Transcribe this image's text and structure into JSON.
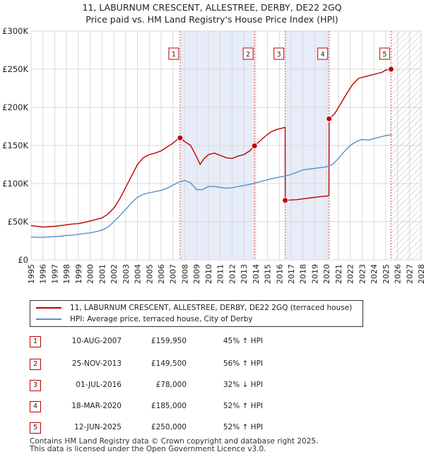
{
  "chart_data": {
    "type": "line",
    "title": "11, LABURNUM CRESCENT, ALLESTREE, DERBY, DE22 2GQ",
    "subtitle": "Price paid vs. HM Land Registry's House Price Index (HPI)",
    "xlim": [
      1995,
      2028
    ],
    "ylim": [
      0,
      300000
    ],
    "x_ticks": [
      "1995",
      "1996",
      "1997",
      "1998",
      "1999",
      "2000",
      "2001",
      "2002",
      "2003",
      "2004",
      "2005",
      "2006",
      "2007",
      "2008",
      "2009",
      "2010",
      "2011",
      "2012",
      "2013",
      "2014",
      "2015",
      "2016",
      "2017",
      "2018",
      "2019",
      "2020",
      "2021",
      "2022",
      "2023",
      "2024",
      "2025",
      "2026",
      "2027",
      "2028"
    ],
    "y_ticks": [
      {
        "value": 0,
        "label": "£0"
      },
      {
        "value": 50000,
        "label": "£50K"
      },
      {
        "value": 100000,
        "label": "£100K"
      },
      {
        "value": 150000,
        "label": "£150K"
      },
      {
        "value": 200000,
        "label": "£200K"
      },
      {
        "value": 250000,
        "label": "£250K"
      },
      {
        "value": 300000,
        "label": "£300K"
      }
    ],
    "grid": true,
    "shaded_periods": [
      [
        2007.61,
        2013.9
      ],
      [
        2016.5,
        2020.21
      ]
    ],
    "hatched_from": 2025.45,
    "series": [
      {
        "name": "11, LABURNUM CRESCENT, ALLESTREE, DERBY, DE22 2GQ (terraced house)",
        "color": "#c00000",
        "x": [
          1995.0,
          1995.5,
          1996.0,
          1996.5,
          1997.0,
          1997.5,
          1998.0,
          1998.5,
          1999.0,
          1999.5,
          2000.0,
          2000.5,
          2001.0,
          2001.5,
          2002.0,
          2002.5,
          2003.0,
          2003.5,
          2004.0,
          2004.5,
          2005.0,
          2005.5,
          2006.0,
          2006.5,
          2007.0,
          2007.3,
          2007.61,
          2008.0,
          2008.5,
          2009.0,
          2009.3,
          2009.6,
          2010.0,
          2010.5,
          2011.0,
          2011.5,
          2012.0,
          2012.5,
          2013.0,
          2013.5,
          2013.9,
          2014.3,
          2014.8,
          2015.3,
          2015.8,
          2016.3,
          2016.49,
          2016.5,
          2017.0,
          2017.5,
          2018.0,
          2018.5,
          2019.0,
          2019.5,
          2020.2,
          2020.21,
          2020.7,
          2021.2,
          2021.7,
          2022.2,
          2022.7,
          2023.2,
          2023.7,
          2024.2,
          2024.7,
          2025.0,
          2025.45
        ],
        "y": [
          45000,
          44000,
          43000,
          43500,
          44000,
          45000,
          46000,
          47000,
          47500,
          49000,
          51000,
          53000,
          55000,
          60000,
          68000,
          80000,
          95000,
          110000,
          125000,
          134000,
          138000,
          140000,
          143000,
          148000,
          153000,
          157000,
          159950,
          155000,
          150000,
          135000,
          125000,
          132000,
          138000,
          140000,
          137000,
          134000,
          133000,
          136000,
          138000,
          143000,
          149500,
          155000,
          162000,
          168000,
          171000,
          173000,
          174000,
          78000,
          78500,
          79000,
          80000,
          81000,
          82000,
          83000,
          84000,
          185000,
          192000,
          205000,
          218000,
          230000,
          238000,
          240000,
          242000,
          244000,
          246000,
          249000,
          250000
        ]
      },
      {
        "name": "HPI: Average price, terraced house, City of Derby",
        "color": "#5b8ec9",
        "x": [
          1995.0,
          1995.5,
          1996.0,
          1996.5,
          1997.0,
          1997.5,
          1998.0,
          1998.5,
          1999.0,
          1999.5,
          2000.0,
          2000.5,
          2001.0,
          2001.5,
          2002.0,
          2002.5,
          2003.0,
          2003.5,
          2004.0,
          2004.5,
          2005.0,
          2005.5,
          2006.0,
          2006.5,
          2007.0,
          2007.5,
          2008.0,
          2008.5,
          2009.0,
          2009.5,
          2010.0,
          2010.5,
          2011.0,
          2011.5,
          2012.0,
          2012.5,
          2013.0,
          2013.5,
          2014.0,
          2014.5,
          2015.0,
          2015.5,
          2016.0,
          2016.5,
          2017.0,
          2017.5,
          2018.0,
          2018.5,
          2019.0,
          2019.5,
          2020.0,
          2020.5,
          2021.0,
          2021.5,
          2022.0,
          2022.5,
          2023.0,
          2023.5,
          2024.0,
          2024.5,
          2025.0,
          2025.5
        ],
        "y": [
          30000,
          29500,
          29500,
          30000,
          30500,
          31000,
          32000,
          32500,
          33500,
          34500,
          35500,
          37000,
          39000,
          43000,
          50000,
          58000,
          66000,
          75000,
          82000,
          86000,
          88000,
          89500,
          91000,
          94000,
          98000,
          102000,
          104000,
          101000,
          92000,
          92000,
          96000,
          96500,
          95000,
          94000,
          94500,
          96000,
          97500,
          99000,
          101000,
          103000,
          105000,
          107000,
          108500,
          110000,
          112000,
          115000,
          118000,
          119000,
          120000,
          121000,
          122000,
          125000,
          133000,
          142000,
          150000,
          155000,
          158000,
          157000,
          159000,
          161000,
          163000,
          164000
        ]
      }
    ],
    "sales": [
      {
        "n": "1",
        "date": "10-AUG-2007",
        "x": 2007.61,
        "price": 159950,
        "price_label": "£159,950",
        "hpi": "45% ↑ HPI"
      },
      {
        "n": "2",
        "date": "25-NOV-2013",
        "x": 2013.9,
        "price": 149500,
        "price_label": "£149,500",
        "hpi": "56% ↑ HPI"
      },
      {
        "n": "3",
        "date": "01-JUL-2016",
        "x": 2016.5,
        "price": 78000,
        "price_label": "£78,000",
        "hpi": "32% ↓ HPI"
      },
      {
        "n": "4",
        "date": "18-MAR-2020",
        "x": 2020.21,
        "price": 185000,
        "price_label": "£185,000",
        "hpi": "52% ↑ HPI"
      },
      {
        "n": "5",
        "date": "12-JUN-2025",
        "x": 2025.45,
        "price": 250000,
        "price_label": "£250,000",
        "hpi": "52% ↑ HPI"
      }
    ]
  },
  "legend": {
    "property_label": "11, LABURNUM CRESCENT, ALLESTREE, DERBY, DE22 2GQ (terraced house)",
    "hpi_label": "HPI: Average price, terraced house, City of Derby",
    "property_color": "#c00000",
    "hpi_color": "#5b8ec9"
  },
  "footer": {
    "line1": "Contains HM Land Registry data © Crown copyright and database right 2025.",
    "line2": "This data is licensed under the Open Government Licence v3.0."
  }
}
